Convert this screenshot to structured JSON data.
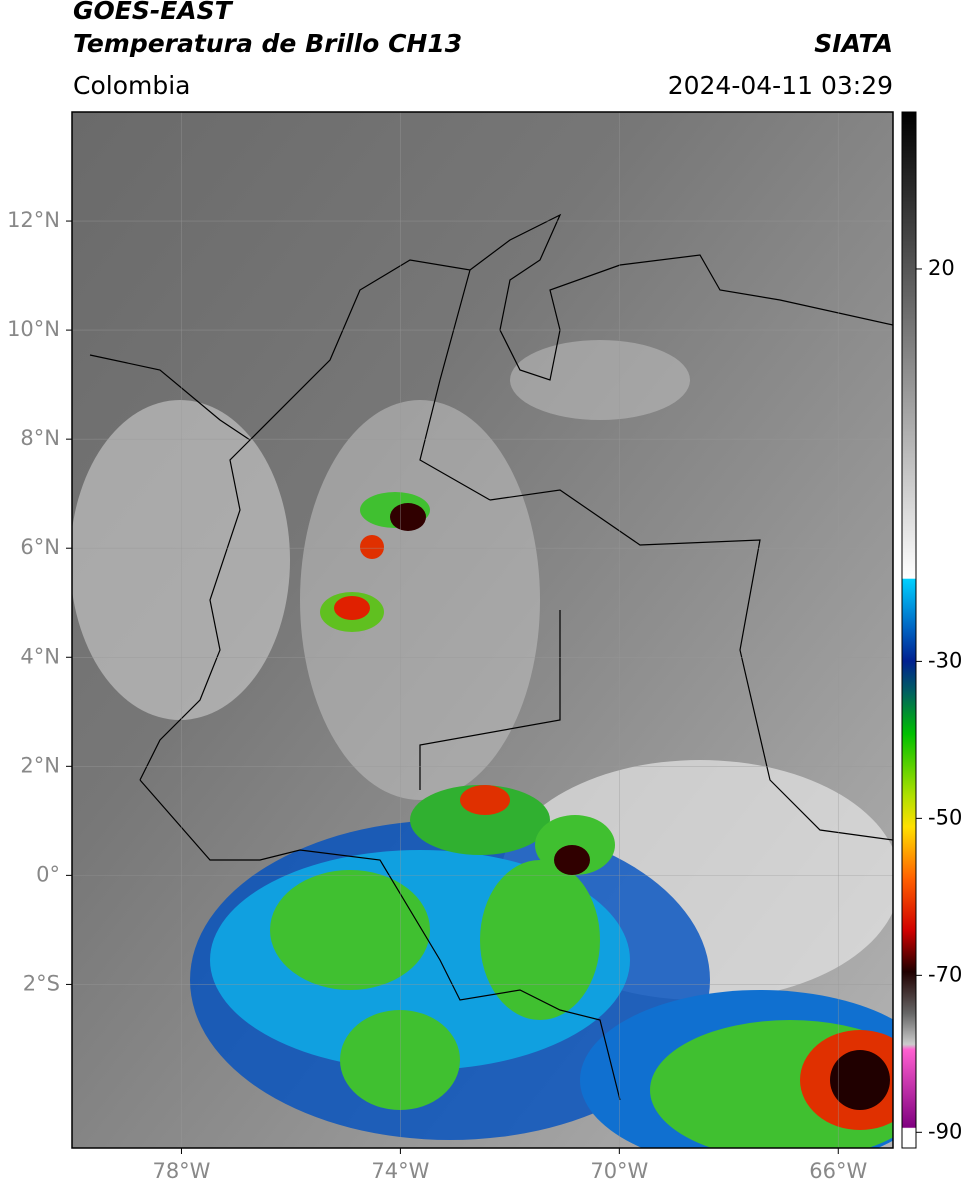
{
  "header": {
    "satellite": "GOES-EAST",
    "product": "Temperatura de Brillo CH13",
    "source": "SIATA",
    "region": "Colombia",
    "datetime": "2024-04-11 03:29"
  },
  "map": {
    "xlim": [
      -80,
      -65
    ],
    "ylim": [
      -5,
      14
    ],
    "xticks": [
      {
        "value": -78,
        "label": "78°W"
      },
      {
        "value": -74,
        "label": "74°W"
      },
      {
        "value": -70,
        "label": "70°W"
      },
      {
        "value": -66,
        "label": "66°W"
      }
    ],
    "yticks": [
      {
        "value": 12,
        "label": "12°N"
      },
      {
        "value": 10,
        "label": "10°N"
      },
      {
        "value": 8,
        "label": "8°N"
      },
      {
        "value": 6,
        "label": "6°N"
      },
      {
        "value": 4,
        "label": "4°N"
      },
      {
        "value": 2,
        "label": "2°N"
      },
      {
        "value": 0,
        "label": "0°"
      },
      {
        "value": -2,
        "label": "2°S"
      }
    ],
    "grid": true
  },
  "colorbar": {
    "lim": [
      -92,
      40
    ],
    "ticks": [
      20,
      -30,
      -50,
      -70,
      -90
    ]
  }
}
